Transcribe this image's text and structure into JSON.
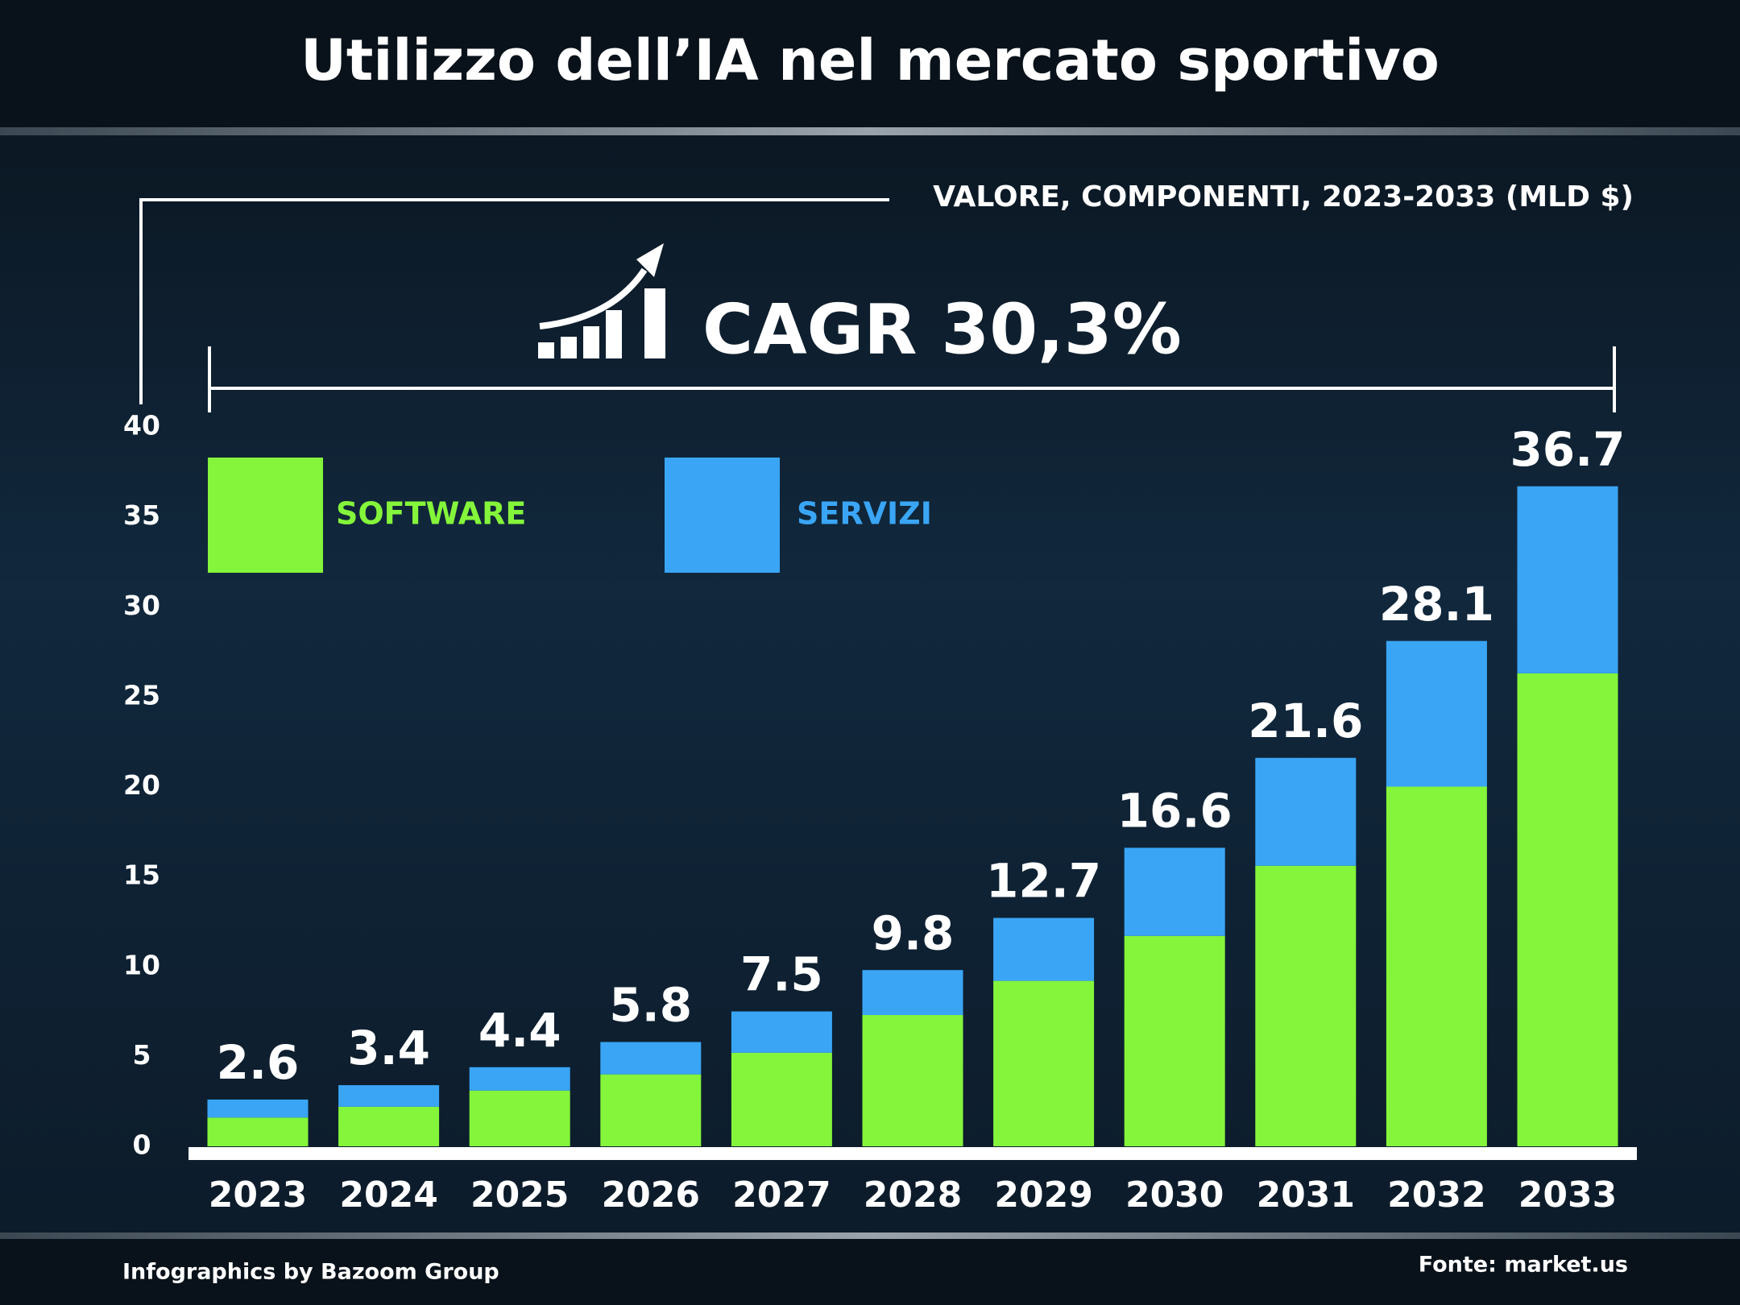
{
  "chart_data": {
    "type": "stacked_bar",
    "title": "Utilizzo dell’IA nel mercato sportivo",
    "subtitle": "VALORE, COMPONENTI, 2023-2033 (MLD $)",
    "annotation": "CAGR 30,3%",
    "categories": [
      "2023",
      "2024",
      "2025",
      "2026",
      "2027",
      "2028",
      "2029",
      "2030",
      "2031",
      "2032",
      "2033"
    ],
    "series": [
      {
        "name": "SOFTWARE",
        "color": "#84f53b",
        "values": [
          1.6,
          2.2,
          3.1,
          4.0,
          5.2,
          7.3,
          9.2,
          11.7,
          15.6,
          20.0,
          26.3
        ]
      },
      {
        "name": "SERVIZI",
        "color": "#3aa5f5",
        "values": [
          1.0,
          1.2,
          1.3,
          1.8,
          2.3,
          2.5,
          3.5,
          4.9,
          6.0,
          8.1,
          10.4
        ]
      }
    ],
    "totals": [
      2.6,
      3.4,
      4.4,
      5.8,
      7.5,
      9.8,
      12.7,
      16.6,
      21.6,
      28.1,
      36.7
    ],
    "ylim": [
      0,
      40
    ],
    "yticks": [
      0,
      5,
      10,
      15,
      20,
      25,
      30,
      35,
      40
    ],
    "footer_left": "Infographics by Bazoom Group",
    "footer_right": "Fonte: market.us"
  }
}
